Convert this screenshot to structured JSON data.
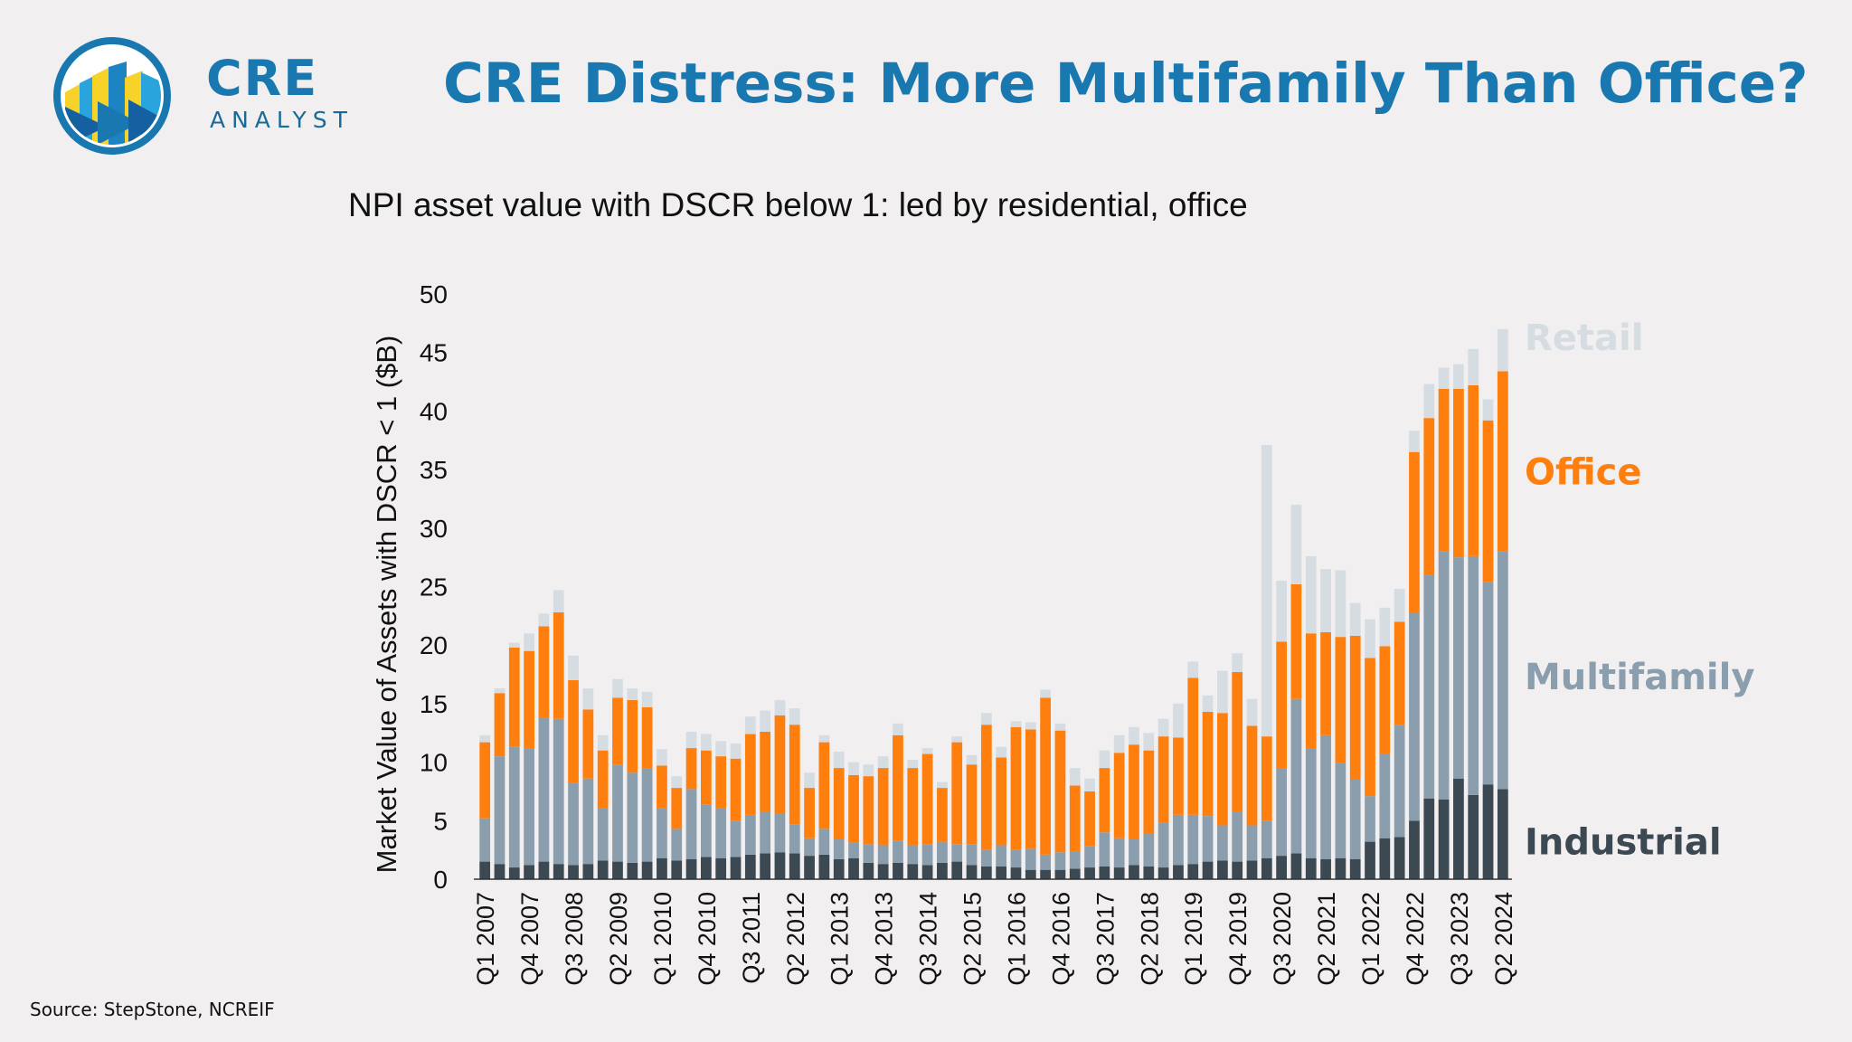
{
  "header": {
    "brand_name": "CRE",
    "brand_sub": "ANALYST",
    "title": "CRE Distress: More Multifamily Than Office?"
  },
  "source": "Source: StepStone, NCREIF",
  "colors": {
    "industrial": "#3c4852",
    "multifamily": "#8b9eae",
    "office": "#ff7f0e",
    "retail": "#d6dde2",
    "title_blue": "#1a78b0"
  },
  "chart_data": {
    "type": "bar",
    "stacked": true,
    "title": "NPI asset value with DSCR below 1: led by residential, office",
    "ylabel": "Market Value of Assets with DSCR < 1 ($B)",
    "xlabel": "",
    "ylim": [
      0,
      50
    ],
    "yticks": [
      0,
      5,
      10,
      15,
      20,
      25,
      30,
      35,
      40,
      45,
      50
    ],
    "x_tick_labels": [
      "Q1 2007",
      "Q4 2007",
      "Q3 2008",
      "Q2 2009",
      "Q1 2010",
      "Q4 2010",
      "Q3 2011",
      "Q2 2012",
      "Q1 2013",
      "Q4 2013",
      "Q3 2014",
      "Q2 2015",
      "Q1 2016",
      "Q4 2016",
      "Q3 2017",
      "Q2 2018",
      "Q1 2019",
      "Q4 2019",
      "Q3 2020",
      "Q2 2021",
      "Q1 2022",
      "Q4 2022",
      "Q3 2023",
      "Q2 2024"
    ],
    "categories": [
      "Q1 2007",
      "Q2 2007",
      "Q3 2007",
      "Q4 2007",
      "Q1 2008",
      "Q2 2008",
      "Q3 2008",
      "Q4 2008",
      "Q1 2009",
      "Q2 2009",
      "Q3 2009",
      "Q4 2009",
      "Q1 2010",
      "Q2 2010",
      "Q3 2010",
      "Q4 2010",
      "Q1 2011",
      "Q2 2011",
      "Q3 2011",
      "Q4 2011",
      "Q1 2012",
      "Q2 2012",
      "Q3 2012",
      "Q4 2012",
      "Q1 2013",
      "Q2 2013",
      "Q3 2013",
      "Q4 2013",
      "Q1 2014",
      "Q2 2014",
      "Q3 2014",
      "Q4 2014",
      "Q1 2015",
      "Q2 2015",
      "Q3 2015",
      "Q4 2015",
      "Q1 2016",
      "Q2 2016",
      "Q3 2016",
      "Q4 2016",
      "Q1 2017",
      "Q2 2017",
      "Q3 2017",
      "Q4 2017",
      "Q1 2018",
      "Q2 2018",
      "Q3 2018",
      "Q4 2018",
      "Q1 2019",
      "Q2 2019",
      "Q3 2019",
      "Q4 2019",
      "Q1 2020",
      "Q2 2020",
      "Q3 2020",
      "Q4 2020",
      "Q1 2021",
      "Q2 2021",
      "Q3 2021",
      "Q4 2021",
      "Q1 2022",
      "Q2 2022",
      "Q3 2022",
      "Q4 2022",
      "Q1 2023",
      "Q2 2023",
      "Q3 2023",
      "Q4 2023",
      "Q1 2024",
      "Q2 2024"
    ],
    "series": [
      {
        "name": "Industrial",
        "color": "#3c4852",
        "values": [
          1.5,
          1.3,
          1.0,
          1.2,
          1.5,
          1.3,
          1.2,
          1.3,
          1.6,
          1.5,
          1.4,
          1.5,
          1.8,
          1.6,
          1.7,
          1.9,
          1.8,
          1.9,
          2.1,
          2.2,
          2.3,
          2.2,
          2.0,
          2.1,
          1.7,
          1.8,
          1.4,
          1.3,
          1.4,
          1.3,
          1.2,
          1.4,
          1.5,
          1.2,
          1.1,
          1.1,
          1.0,
          0.8,
          0.8,
          0.8,
          0.9,
          1.0,
          1.1,
          1.0,
          1.2,
          1.1,
          1.0,
          1.2,
          1.3,
          1.5,
          1.6,
          1.5,
          1.6,
          1.8,
          2.0,
          2.2,
          1.8,
          1.7,
          1.8,
          1.7,
          3.2,
          3.5,
          3.6,
          5.0,
          6.9,
          6.8,
          8.6,
          7.2,
          8.1,
          7.7
        ]
      },
      {
        "name": "Multifamily",
        "color": "#8b9eae",
        "values": [
          3.7,
          9.2,
          10.3,
          10.0,
          12.3,
          12.4,
          7.0,
          7.3,
          4.5,
          8.3,
          7.7,
          8.0,
          4.3,
          2.7,
          6.0,
          4.5,
          4.3,
          3.1,
          3.4,
          3.6,
          3.3,
          2.5,
          1.5,
          2.2,
          1.7,
          1.3,
          1.6,
          1.6,
          1.9,
          1.6,
          1.8,
          1.8,
          1.5,
          1.8,
          1.4,
          1.8,
          1.5,
          1.8,
          1.3,
          1.5,
          1.5,
          1.8,
          2.9,
          2.5,
          2.2,
          2.8,
          3.8,
          4.3,
          4.2,
          3.9,
          3.0,
          4.3,
          3.0,
          3.2,
          7.5,
          13.2,
          9.4,
          10.6,
          8.1,
          6.8,
          3.9,
          7.2,
          9.6,
          17.8,
          19.1,
          21.2,
          18.9,
          20.4,
          17.3,
          20.3
        ]
      },
      {
        "name": "Office",
        "color": "#ff7f0e",
        "values": [
          6.5,
          5.4,
          8.5,
          8.3,
          7.8,
          9.1,
          8.8,
          5.9,
          4.9,
          5.7,
          6.2,
          5.2,
          3.6,
          3.5,
          3.5,
          4.6,
          4.4,
          5.3,
          6.9,
          6.8,
          8.4,
          8.5,
          4.3,
          7.4,
          6.1,
          5.8,
          5.8,
          6.6,
          9.0,
          6.6,
          7.7,
          4.6,
          8.7,
          6.8,
          10.7,
          7.5,
          10.5,
          10.2,
          13.4,
          10.4,
          5.6,
          4.7,
          5.5,
          7.3,
          8.1,
          7.1,
          7.4,
          6.6,
          11.7,
          8.9,
          9.6,
          11.9,
          8.5,
          7.2,
          10.8,
          9.8,
          9.8,
          8.8,
          10.8,
          12.3,
          11.8,
          9.2,
          8.8,
          13.7,
          13.4,
          13.9,
          14.4,
          14.6,
          13.8,
          15.4
        ]
      },
      {
        "name": "Retail",
        "color": "#d6dde2",
        "values": [
          0.6,
          0.4,
          0.4,
          1.5,
          1.1,
          1.9,
          2.1,
          1.8,
          1.3,
          1.6,
          1.0,
          1.3,
          1.4,
          1.0,
          1.4,
          1.4,
          1.3,
          1.3,
          1.5,
          1.8,
          1.3,
          1.4,
          1.3,
          0.6,
          1.4,
          1.1,
          1.0,
          1.0,
          1.0,
          0.7,
          0.5,
          0.5,
          0.5,
          0.8,
          1.0,
          0.9,
          0.5,
          0.6,
          0.7,
          0.6,
          1.5,
          1.1,
          1.5,
          1.5,
          1.5,
          1.5,
          1.5,
          2.9,
          1.4,
          1.4,
          3.6,
          1.6,
          2.3,
          24.9,
          5.2,
          6.8,
          6.6,
          5.4,
          5.7,
          2.8,
          3.3,
          3.3,
          2.8,
          1.8,
          2.9,
          1.8,
          2.1,
          3.1,
          1.8,
          3.6
        ]
      }
    ],
    "legend": {
      "position": "right, aligned with stacks",
      "labels": [
        "Retail",
        "Office",
        "Multifamily",
        "Industrial"
      ]
    }
  }
}
